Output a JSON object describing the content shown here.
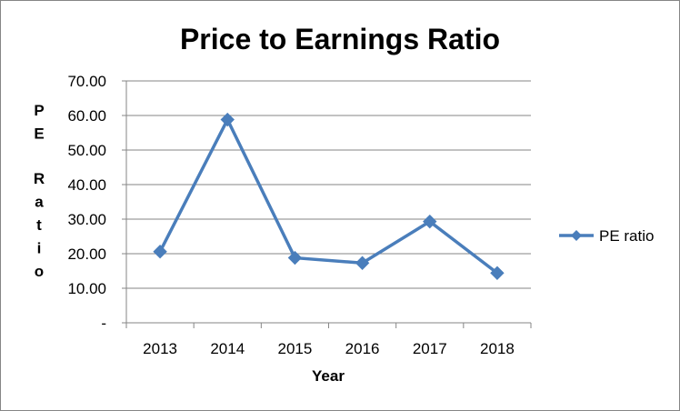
{
  "chart_data": {
    "type": "line",
    "title": "Price to Earnings Ratio",
    "xlabel": "Year",
    "ylabel": "PE Ratio",
    "categories": [
      "2013",
      "2014",
      "2015",
      "2016",
      "2017",
      "2018"
    ],
    "series": [
      {
        "name": "PE ratio",
        "values": [
          20.6,
          58.8,
          18.8,
          17.3,
          29.3,
          14.4
        ]
      }
    ],
    "ylim": [
      0,
      70
    ],
    "yticks": [
      "-",
      "10.00",
      "20.00",
      "30.00",
      "40.00",
      "50.00",
      "60.00",
      "70.00"
    ],
    "grid": true,
    "legend": "right",
    "colors": {
      "series": "#4A7EBB",
      "grid": "#868686",
      "axis": "#868686"
    }
  }
}
